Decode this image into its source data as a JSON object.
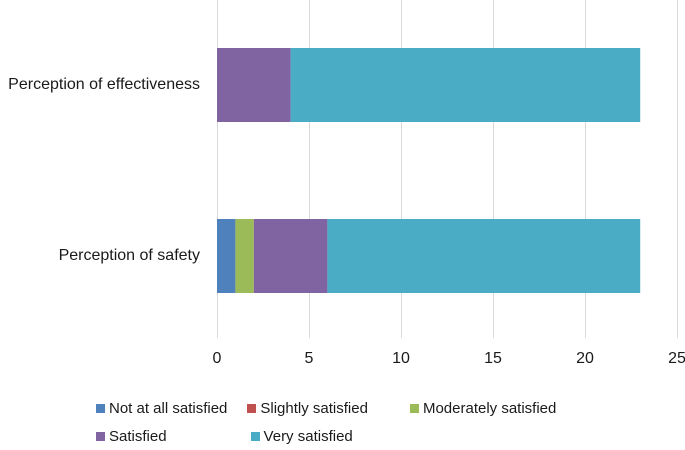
{
  "chart_data": {
    "type": "bar",
    "orientation": "horizontal",
    "stacked": true,
    "title": "",
    "xlabel": "",
    "ylabel": "",
    "xlim": [
      0,
      25
    ],
    "xticks": [
      0,
      5,
      10,
      15,
      20,
      25
    ],
    "grid": true,
    "legend_position": "bottom",
    "categories": [
      "Perception of effectiveness",
      "Perception of safety"
    ],
    "series": [
      {
        "name": "Not at all satisfied",
        "color": "#4f81bd",
        "values": [
          0,
          1
        ]
      },
      {
        "name": "Slightly satisfied",
        "color": "#c0504d",
        "values": [
          0,
          0
        ]
      },
      {
        "name": "Moderately satisfied",
        "color": "#9bbb59",
        "values": [
          0,
          1
        ]
      },
      {
        "name": "Satisfied",
        "color": "#8064a2",
        "values": [
          4,
          4
        ]
      },
      {
        "name": "Very satisfied",
        "color": "#4bacc6",
        "values": [
          19,
          17
        ]
      }
    ]
  }
}
